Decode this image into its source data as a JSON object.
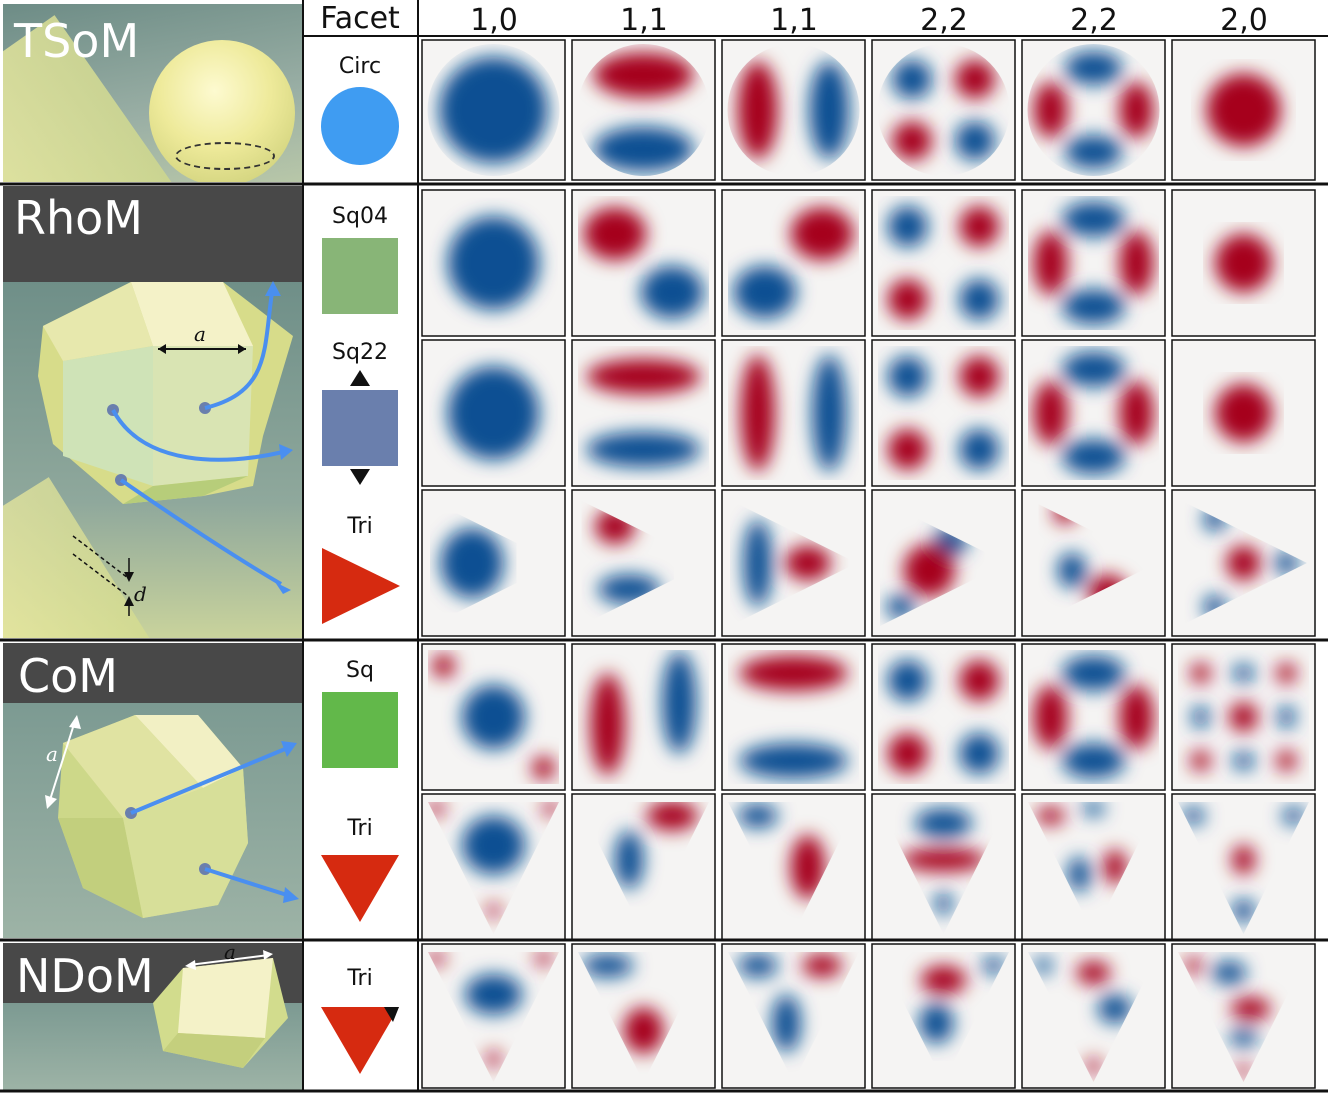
{
  "header": {
    "facet_label": "Facet",
    "modes": [
      "1,0",
      "1,1",
      "1,1",
      "2,2",
      "2,2",
      "2,0"
    ]
  },
  "rows": [
    {
      "particle": "TSoM",
      "facets": [
        {
          "label": "Circ",
          "shape": "circle",
          "color": "#3f9cf2"
        }
      ]
    },
    {
      "particle": "RhoM",
      "symbols": {
        "edge": "a",
        "gap": "d"
      },
      "facets": [
        {
          "label": "Sq04",
          "shape": "square",
          "color": "#88b577"
        },
        {
          "label": "Sq22",
          "shape": "square",
          "color": "#6a7fad"
        },
        {
          "label": "Tri",
          "shape": "triangle-right",
          "color": "#d62a10"
        }
      ]
    },
    {
      "particle": "CoM",
      "symbols": {
        "edge": "a"
      },
      "facets": [
        {
          "label": "Sq",
          "shape": "square",
          "color": "#62b84a"
        },
        {
          "label": "Tri",
          "shape": "triangle-down",
          "color": "#d62a10"
        }
      ]
    },
    {
      "particle": "NDoM",
      "symbols": {
        "edge": "a"
      },
      "facets": [
        {
          "label": "Tri",
          "shape": "triangle-down",
          "color": "#d62a10"
        }
      ]
    }
  ],
  "colors": {
    "positive": "#a6001c",
    "negative": "#0b4f93",
    "neutral": "#f5f4f3",
    "arrow": "#4a8ff0",
    "render_bg": "#8da89f",
    "render_dark": "#484848"
  }
}
